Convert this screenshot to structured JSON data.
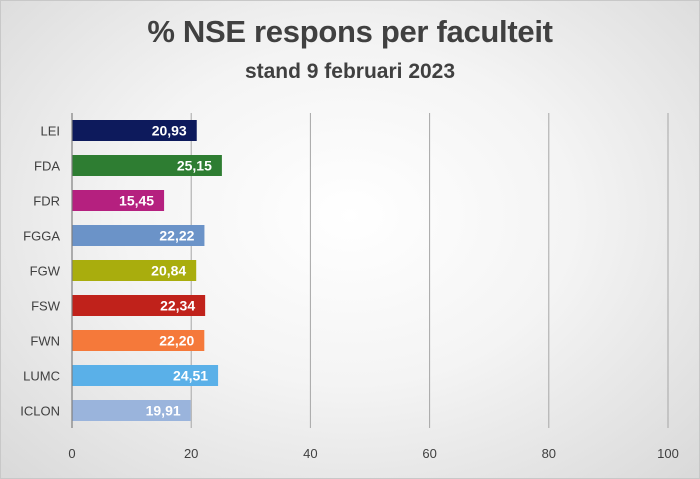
{
  "chart_data": {
    "type": "bar",
    "orientation": "horizontal",
    "title": "% NSE respons per faculteit",
    "subtitle": "stand 9 februari 2023",
    "categories": [
      "LEI",
      "FDA",
      "FDR",
      "FGGA",
      "FGW",
      "FSW",
      "FWN",
      "LUMC",
      "ICLON"
    ],
    "values": [
      20.93,
      25.15,
      15.45,
      22.22,
      20.84,
      22.34,
      22.2,
      24.51,
      19.91
    ],
    "data_labels": [
      "20,93",
      "25,15",
      "15,45",
      "22,22",
      "20,84",
      "22,34",
      "22,20",
      "24,51",
      "19,91"
    ],
    "colors": [
      "#0d1a5c",
      "#2e7d32",
      "#b5207f",
      "#6b93c8",
      "#a9ad0d",
      "#c0221b",
      "#f5793a",
      "#5ab0e8",
      "#9ab4dc"
    ],
    "xlim": [
      0,
      100
    ],
    "xticks": [
      0,
      20,
      40,
      60,
      80,
      100
    ],
    "grid": true,
    "legend": "none"
  }
}
